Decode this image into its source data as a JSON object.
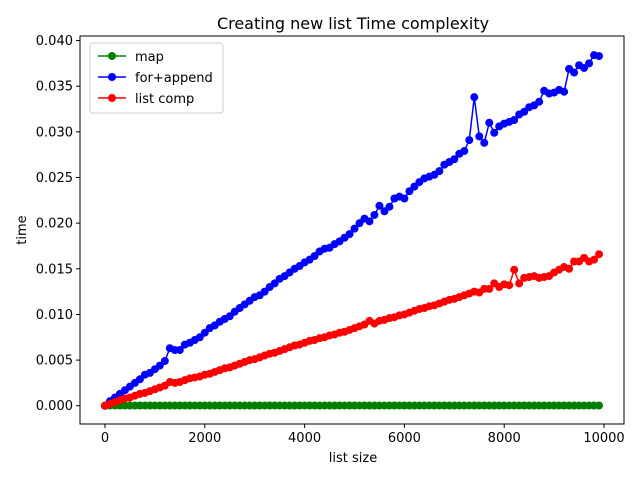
{
  "chart_data": {
    "type": "line",
    "title": "Creating new list Time complexity",
    "xlabel": "list size",
    "ylabel": "time",
    "xlim": [
      -500,
      10400
    ],
    "ylim": [
      -0.002,
      0.0405
    ],
    "x_ticks": [
      0,
      2000,
      4000,
      6000,
      8000,
      10000
    ],
    "x_tick_labels": [
      "0",
      "2000",
      "4000",
      "6000",
      "8000",
      "10000"
    ],
    "y_ticks": [
      0.0,
      0.005,
      0.01,
      0.015,
      0.02,
      0.025,
      0.03,
      0.035,
      0.04
    ],
    "y_tick_labels": [
      "0.000",
      "0.005",
      "0.010",
      "0.015",
      "0.020",
      "0.025",
      "0.030",
      "0.035",
      "0.040"
    ],
    "grid": false,
    "legend_position": "upper left",
    "x": [
      0,
      100,
      200,
      300,
      400,
      500,
      600,
      700,
      800,
      900,
      1000,
      1100,
      1200,
      1300,
      1400,
      1500,
      1600,
      1700,
      1800,
      1900,
      2000,
      2100,
      2200,
      2300,
      2400,
      2500,
      2600,
      2700,
      2800,
      2900,
      3000,
      3100,
      3200,
      3300,
      3400,
      3500,
      3600,
      3700,
      3800,
      3900,
      4000,
      4100,
      4200,
      4300,
      4400,
      4500,
      4600,
      4700,
      4800,
      4900,
      5000,
      5100,
      5200,
      5300,
      5400,
      5500,
      5600,
      5700,
      5800,
      5900,
      6000,
      6100,
      6200,
      6300,
      6400,
      6500,
      6600,
      6700,
      6800,
      6900,
      7000,
      7100,
      7200,
      7300,
      7400,
      7500,
      7600,
      7700,
      7800,
      7900,
      8000,
      8100,
      8200,
      8300,
      8400,
      8500,
      8600,
      8700,
      8800,
      8900,
      9000,
      9100,
      9200,
      9300,
      9400,
      9500,
      9600,
      9700,
      9800,
      9900
    ],
    "series": [
      {
        "name": "map",
        "color": "#008000",
        "values": [
          2e-05,
          2e-05,
          2e-05,
          2e-05,
          2e-05,
          2e-05,
          2e-05,
          2e-05,
          2e-05,
          2e-05,
          2e-05,
          2e-05,
          2e-05,
          2e-05,
          2e-05,
          2e-05,
          2e-05,
          2e-05,
          2e-05,
          2e-05,
          2e-05,
          2e-05,
          2e-05,
          2e-05,
          2e-05,
          2e-05,
          2e-05,
          2e-05,
          2e-05,
          2e-05,
          2e-05,
          2e-05,
          2e-05,
          2e-05,
          2e-05,
          2e-05,
          2e-05,
          2e-05,
          2e-05,
          2e-05,
          2e-05,
          2e-05,
          2e-05,
          2e-05,
          2e-05,
          2e-05,
          2e-05,
          2e-05,
          2e-05,
          2e-05,
          2e-05,
          2e-05,
          2e-05,
          2e-05,
          2e-05,
          2e-05,
          2e-05,
          2e-05,
          2e-05,
          2e-05,
          2e-05,
          2e-05,
          2e-05,
          2e-05,
          2e-05,
          2e-05,
          2e-05,
          2e-05,
          2e-05,
          2e-05,
          2e-05,
          2e-05,
          2e-05,
          2e-05,
          2e-05,
          2e-05,
          2e-05,
          2e-05,
          2e-05,
          2e-05,
          2e-05,
          2e-05,
          2e-05,
          2e-05,
          2e-05,
          2e-05,
          2e-05,
          2e-05,
          2e-05,
          2e-05,
          2e-05,
          2e-05,
          2e-05,
          2e-05,
          2e-05,
          2e-05,
          2e-05,
          2e-05,
          2e-05,
          2e-05
        ]
      },
      {
        "name": "for+append",
        "color": "#0000ff",
        "values": [
          0.0,
          0.0005,
          0.0009,
          0.0013,
          0.0017,
          0.0021,
          0.0025,
          0.0029,
          0.0034,
          0.0036,
          0.004,
          0.0044,
          0.0049,
          0.0063,
          0.0061,
          0.0061,
          0.0067,
          0.0069,
          0.0072,
          0.0075,
          0.008,
          0.0085,
          0.0088,
          0.0092,
          0.0095,
          0.0098,
          0.0103,
          0.0107,
          0.0111,
          0.0115,
          0.0119,
          0.0121,
          0.0125,
          0.013,
          0.0134,
          0.0139,
          0.0142,
          0.0146,
          0.015,
          0.0153,
          0.0157,
          0.016,
          0.0164,
          0.0169,
          0.0172,
          0.0173,
          0.0177,
          0.018,
          0.0184,
          0.0188,
          0.0194,
          0.02,
          0.0205,
          0.0202,
          0.0209,
          0.0219,
          0.0213,
          0.0218,
          0.0227,
          0.0229,
          0.0227,
          0.0235,
          0.024,
          0.0245,
          0.0249,
          0.0251,
          0.0253,
          0.0257,
          0.0264,
          0.0267,
          0.027,
          0.0276,
          0.0279,
          0.0291,
          0.0338,
          0.0295,
          0.0288,
          0.031,
          0.0299,
          0.0306,
          0.0309,
          0.0311,
          0.0313,
          0.0319,
          0.0322,
          0.0327,
          0.0329,
          0.0333,
          0.0345,
          0.0342,
          0.0343,
          0.0346,
          0.0344,
          0.0369,
          0.0365,
          0.0373,
          0.037,
          0.0375,
          0.0384,
          0.0383
        ]
      },
      {
        "name": "list comp",
        "color": "#ff0000",
        "values": [
          0.0,
          0.0002,
          0.0004,
          0.0006,
          0.0008,
          0.0009,
          0.0011,
          0.0013,
          0.0014,
          0.0016,
          0.0018,
          0.002,
          0.0022,
          0.0026,
          0.0025,
          0.0026,
          0.0028,
          0.003,
          0.0031,
          0.0032,
          0.0034,
          0.0035,
          0.0037,
          0.0039,
          0.0041,
          0.0042,
          0.0044,
          0.0046,
          0.0048,
          0.005,
          0.0051,
          0.0053,
          0.0055,
          0.0057,
          0.0058,
          0.006,
          0.0062,
          0.0064,
          0.0066,
          0.0067,
          0.0069,
          0.0071,
          0.0072,
          0.0074,
          0.0075,
          0.0077,
          0.0078,
          0.008,
          0.0081,
          0.0083,
          0.0085,
          0.0087,
          0.0089,
          0.0093,
          0.009,
          0.0093,
          0.0094,
          0.0096,
          0.0097,
          0.0099,
          0.01,
          0.0102,
          0.0104,
          0.0106,
          0.0107,
          0.0109,
          0.011,
          0.0112,
          0.0114,
          0.0116,
          0.0117,
          0.0119,
          0.0121,
          0.0123,
          0.0125,
          0.0124,
          0.0128,
          0.0128,
          0.0134,
          0.013,
          0.0133,
          0.0132,
          0.0149,
          0.0134,
          0.014,
          0.0141,
          0.0142,
          0.014,
          0.0141,
          0.0142,
          0.0146,
          0.0149,
          0.0152,
          0.015,
          0.0158,
          0.0158,
          0.0162,
          0.0158,
          0.016,
          0.0166
        ]
      }
    ]
  }
}
